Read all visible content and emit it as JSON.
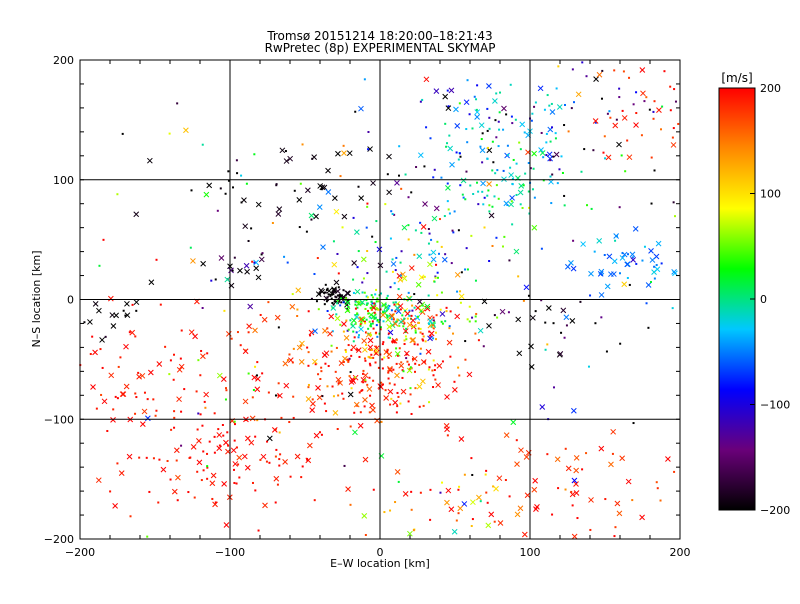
{
  "chart_data": {
    "type": "scatter",
    "title": "Tromsø 20151214  18:20:00–18:21:43",
    "subtitle": "RwPretec (8p) EXPERIMENTAL SKYMAP",
    "xlabel": "E–W location [km]",
    "ylabel": "N–S location [km]",
    "xlim": [
      -200,
      200
    ],
    "ylim": [
      -200,
      200
    ],
    "xticks": [
      -200,
      -100,
      0,
      100,
      200
    ],
    "yticks": [
      -200,
      -100,
      0,
      100,
      200
    ],
    "grid": true,
    "colorbar": {
      "label": "[m/s]",
      "range": [
        -200,
        200
      ],
      "ticks": [
        200,
        100,
        0,
        -100,
        -200
      ],
      "palette": [
        "#000000",
        "#6a007a",
        "#0000ff",
        "#00c8ff",
        "#00ff00",
        "#ffff00",
        "#ff8800",
        "#ff0000"
      ]
    },
    "markers": {
      "dot": "small dot",
      "cross": "x"
    },
    "clusters": [
      {
        "x": -32,
        "y": 3,
        "sx": 6,
        "sy": 4,
        "n": 60,
        "v": -200,
        "vs": 10,
        "cross": 0.3
      },
      {
        "x": -5,
        "y": -10,
        "sx": 12,
        "sy": 8,
        "n": 120,
        "v": 20,
        "vs": 35,
        "cross": 0.2
      },
      {
        "x": 15,
        "y": -18,
        "sx": 25,
        "sy": 10,
        "n": 120,
        "v": 80,
        "vs": 110,
        "cross": 0.25
      },
      {
        "x": -5,
        "y": -60,
        "sx": 25,
        "sy": 20,
        "n": 160,
        "v": 190,
        "vs": 20,
        "cross": 0.25
      },
      {
        "x": 15,
        "y": -50,
        "sx": 20,
        "sy": 25,
        "n": 60,
        "v": 140,
        "vs": 60,
        "cross": 0.25
      },
      {
        "x": -60,
        "y": -40,
        "sx": 30,
        "sy": 30,
        "n": 60,
        "v": 170,
        "vs": 40,
        "cross": 0.35
      },
      {
        "x": -95,
        "y": -130,
        "sx": 30,
        "sy": 25,
        "n": 110,
        "v": 195,
        "vs": 10,
        "cross": 0.35
      },
      {
        "x": -160,
        "y": -110,
        "sx": 25,
        "sy": 45,
        "n": 50,
        "v": 195,
        "vs": 10,
        "cross": 0.5
      },
      {
        "x": -145,
        "y": -55,
        "sx": 35,
        "sy": 20,
        "n": 40,
        "v": 195,
        "vs": 10,
        "cross": 0.4
      },
      {
        "x": 115,
        "y": -150,
        "sx": 45,
        "sy": 30,
        "n": 70,
        "v": 185,
        "vs": 20,
        "cross": 0.5
      },
      {
        "x": 45,
        "y": -175,
        "sx": 30,
        "sy": 15,
        "n": 40,
        "v": 120,
        "vs": 90,
        "cross": 0.4
      },
      {
        "x": 80,
        "y": 140,
        "sx": 30,
        "sy": 25,
        "n": 100,
        "v": -30,
        "vs": 40,
        "cross": 0.25
      },
      {
        "x": 85,
        "y": 90,
        "sx": 20,
        "sy": 12,
        "n": 60,
        "v": 0,
        "vs": 30,
        "cross": 0.25
      },
      {
        "x": 160,
        "y": 30,
        "sx": 20,
        "sy": 15,
        "n": 50,
        "v": -50,
        "vs": 15,
        "cross": 0.6
      },
      {
        "x": 20,
        "y": 35,
        "sx": 25,
        "sy": 25,
        "n": 100,
        "v": 0,
        "vs": 90,
        "cross": 0.25
      },
      {
        "x": -60,
        "y": 90,
        "sx": 45,
        "sy": 20,
        "n": 50,
        "v": -200,
        "vs": 10,
        "cross": 0.5
      },
      {
        "x": -180,
        "y": -15,
        "sx": 12,
        "sy": 10,
        "n": 15,
        "v": -200,
        "vs": 10,
        "cross": 0.7
      },
      {
        "x": -95,
        "y": 25,
        "sx": 10,
        "sy": 8,
        "n": 20,
        "v": -180,
        "vs": 80,
        "cross": 0.5
      },
      {
        "x": 110,
        "y": -25,
        "sx": 30,
        "sy": 15,
        "n": 30,
        "v": -190,
        "vs": 40,
        "cross": 0.4
      },
      {
        "x": 130,
        "y": 140,
        "sx": 60,
        "sy": 40,
        "n": 70,
        "v": -150,
        "vs": 60,
        "cross": 0.1
      },
      {
        "x": 165,
        "y": 160,
        "sx": 25,
        "sy": 25,
        "n": 40,
        "v": 190,
        "vs": 20,
        "cross": 0.3
      },
      {
        "x": 0,
        "y": 0,
        "sx": 115,
        "sy": 115,
        "n": 180,
        "v": 0,
        "vs": 150,
        "cross": 0.25
      }
    ]
  }
}
